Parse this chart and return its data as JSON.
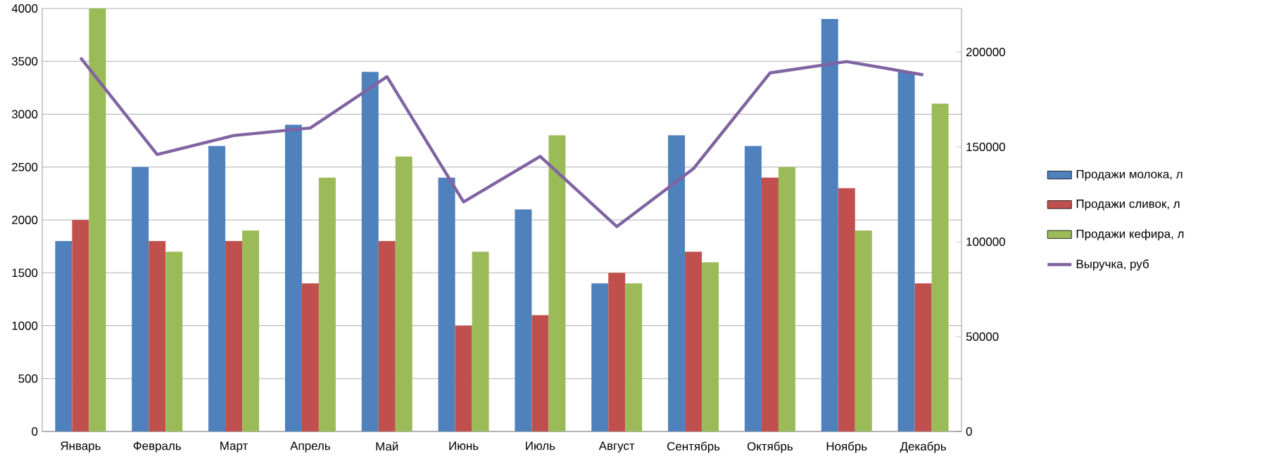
{
  "chart_data": {
    "type": "bar",
    "categories": [
      "Январь",
      "Февраль",
      "Март",
      "Апрель",
      "Май",
      "Июнь",
      "Июль",
      "Август",
      "Сентябрь",
      "Октябрь",
      "Ноябрь",
      "Декабрь"
    ],
    "series": [
      {
        "name": "Продажи молока, л",
        "color": "#4f81bd",
        "values": [
          1800,
          2500,
          2700,
          2900,
          3400,
          2400,
          2100,
          1400,
          2800,
          2700,
          3900,
          3400
        ]
      },
      {
        "name": "Продажи сливок, л",
        "color": "#c0504d",
        "values": [
          2000,
          1800,
          1800,
          1400,
          1800,
          1000,
          1100,
          1500,
          1700,
          2400,
          2300,
          1400
        ]
      },
      {
        "name": "Продажи кефира, л",
        "color": "#9bbb59",
        "values": [
          4000,
          1700,
          1900,
          2400,
          2600,
          1700,
          2800,
          1400,
          1600,
          2500,
          1900,
          3100
        ]
      },
      {
        "name": "Выручка, руб",
        "color": "#8064a2",
        "type": "line",
        "axis": "y2",
        "values": [
          197000,
          146000,
          156000,
          160000,
          187000,
          121000,
          145000,
          108000,
          138500,
          189000,
          195000,
          188000
        ]
      }
    ],
    "ylim": [
      0,
      4000
    ],
    "yticks": [
      0,
      500,
      1000,
      1500,
      2000,
      2500,
      3000,
      3500,
      4000
    ],
    "y2lim": [
      0,
      223000
    ],
    "y2ticks": [
      0,
      50000,
      100000,
      150000,
      200000
    ],
    "grid": "y",
    "legend": "right"
  }
}
